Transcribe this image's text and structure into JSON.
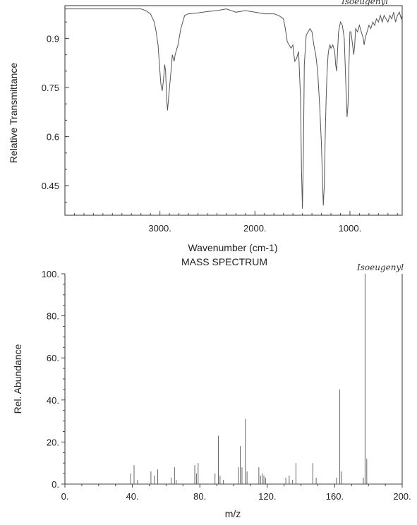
{
  "chart_data": [
    {
      "type": "line",
      "name": "ir-spectrum",
      "title": "",
      "annotation": "Isoeugenyl",
      "xlabel": "Wavenumber (cm-1)",
      "ylabel": "Relative Transmittance",
      "xlim": [
        4000,
        450
      ],
      "ylim": [
        0.36,
        1.0
      ],
      "x_reversed": true,
      "xticks": [
        3000,
        2000,
        1000
      ],
      "xtick_labels": [
        "3000.",
        "2000.",
        "1000."
      ],
      "yticks": [
        0.45,
        0.6,
        0.75,
        0.9
      ],
      "ytick_labels": [
        "0.45",
        "0.6",
        "0.75",
        "0.9"
      ],
      "grid": false,
      "x": [
        4000,
        3700,
        3400,
        3200,
        3150,
        3100,
        3060,
        3040,
        3020,
        3010,
        3000,
        2990,
        2975,
        2960,
        2950,
        2940,
        2930,
        2920,
        2905,
        2880,
        2870,
        2860,
        2850,
        2840,
        2830,
        2810,
        2780,
        2740,
        2700,
        2600,
        2500,
        2400,
        2300,
        2200,
        2100,
        2000,
        1900,
        1800,
        1750,
        1700,
        1680,
        1660,
        1640,
        1620,
        1600,
        1590,
        1580,
        1560,
        1540,
        1520,
        1510,
        1500,
        1490,
        1480,
        1460,
        1440,
        1420,
        1400,
        1380,
        1360,
        1340,
        1320,
        1300,
        1290,
        1280,
        1270,
        1260,
        1250,
        1240,
        1230,
        1220,
        1210,
        1200,
        1180,
        1160,
        1150,
        1140,
        1130,
        1120,
        1100,
        1080,
        1060,
        1050,
        1040,
        1030,
        1020,
        1010,
        1000,
        990,
        980,
        960,
        950,
        940,
        920,
        900,
        880,
        860,
        850,
        840,
        820,
        800,
        780,
        760,
        740,
        720,
        700,
        680,
        660,
        640,
        620,
        600,
        580,
        560,
        540,
        520,
        500,
        480,
        460,
        450
      ],
      "y": [
        0.99,
        0.99,
        0.99,
        0.99,
        0.985,
        0.975,
        0.95,
        0.92,
        0.88,
        0.84,
        0.8,
        0.76,
        0.74,
        0.78,
        0.82,
        0.8,
        0.72,
        0.68,
        0.73,
        0.81,
        0.85,
        0.84,
        0.83,
        0.85,
        0.86,
        0.88,
        0.93,
        0.97,
        0.975,
        0.978,
        0.982,
        0.985,
        0.99,
        0.98,
        0.985,
        0.98,
        0.975,
        0.975,
        0.97,
        0.96,
        0.93,
        0.89,
        0.88,
        0.87,
        0.88,
        0.85,
        0.83,
        0.84,
        0.86,
        0.72,
        0.5,
        0.38,
        0.55,
        0.82,
        0.91,
        0.92,
        0.93,
        0.92,
        0.88,
        0.85,
        0.8,
        0.7,
        0.58,
        0.48,
        0.39,
        0.45,
        0.6,
        0.72,
        0.8,
        0.85,
        0.87,
        0.88,
        0.87,
        0.88,
        0.86,
        0.82,
        0.8,
        0.86,
        0.92,
        0.95,
        0.94,
        0.9,
        0.82,
        0.73,
        0.66,
        0.7,
        0.82,
        0.92,
        0.92,
        0.9,
        0.85,
        0.88,
        0.93,
        0.92,
        0.94,
        0.92,
        0.9,
        0.88,
        0.9,
        0.92,
        0.94,
        0.93,
        0.95,
        0.94,
        0.96,
        0.95,
        0.97,
        0.95,
        0.97,
        0.96,
        0.95,
        0.97,
        0.96,
        0.98,
        0.95,
        0.97,
        0.98,
        0.96,
        0.97
      ]
    },
    {
      "type": "bar",
      "name": "mass-spectrum",
      "title": "MASS SPECTRUM",
      "annotation": "Isoeugenyl",
      "xlabel": "m/z",
      "ylabel": "Rel. Abundance",
      "xlim": [
        0,
        200
      ],
      "ylim": [
        0,
        100
      ],
      "xticks": [
        0,
        40,
        80,
        120,
        160,
        200
      ],
      "xtick_labels": [
        "0.",
        "40.",
        "80.",
        "120.",
        "160.",
        "200."
      ],
      "yticks": [
        0,
        20,
        40,
        60,
        80,
        100
      ],
      "ytick_labels": [
        "0.",
        "20.",
        "40.",
        "60.",
        "80.",
        "100."
      ],
      "grid": false,
      "x": [
        39,
        41,
        43,
        51,
        53,
        55,
        63,
        65,
        66,
        77,
        78,
        79,
        89,
        91,
        92,
        94,
        103,
        104,
        105,
        107,
        108,
        115,
        116,
        117,
        118,
        119,
        131,
        133,
        135,
        137,
        147,
        149,
        161,
        163,
        164,
        177,
        178,
        179
      ],
      "values": [
        5,
        9,
        2,
        6,
        4,
        7,
        3,
        8,
        2,
        9,
        5,
        10,
        5,
        23,
        4,
        2,
        8,
        18,
        8,
        31,
        6,
        8,
        4,
        5,
        4,
        3,
        3,
        4,
        2,
        10,
        10,
        3,
        3,
        45,
        6,
        3,
        100,
        12
      ]
    }
  ]
}
